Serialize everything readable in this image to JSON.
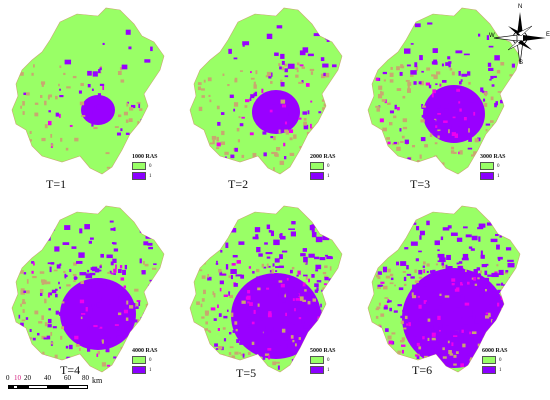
{
  "panels": [
    {
      "id": "p1",
      "t_label": "T=1",
      "legend_title": "1000 RAS",
      "urban_level": 1
    },
    {
      "id": "p2",
      "t_label": "T=2",
      "legend_title": "2000 RAS",
      "urban_level": 2
    },
    {
      "id": "p3",
      "t_label": "T=3",
      "legend_title": "3000 RAS",
      "urban_level": 3
    },
    {
      "id": "p4",
      "t_label": "T=4",
      "legend_title": "4000 RAS",
      "urban_level": 4
    },
    {
      "id": "p5",
      "t_label": "T=5",
      "legend_title": "5000 RAS",
      "urban_level": 5
    },
    {
      "id": "p6",
      "t_label": "T=6",
      "legend_title": "6000 RAS",
      "urban_level": 6
    }
  ],
  "legend": {
    "classes": [
      {
        "value": "0",
        "color": "#99ff66"
      },
      {
        "value": "1",
        "color": "#8b00ff"
      }
    ]
  },
  "colors": {
    "land": "#99ff66",
    "urban": "#9900ff",
    "magenta": "#ee00ee",
    "edge": "#c8a870"
  },
  "scalebar": {
    "ticks": [
      "0",
      "10",
      "20",
      "40",
      "60",
      "80"
    ],
    "unit": "km"
  },
  "compass": {
    "n": "N",
    "s": "S",
    "e": "E",
    "w": "W"
  }
}
